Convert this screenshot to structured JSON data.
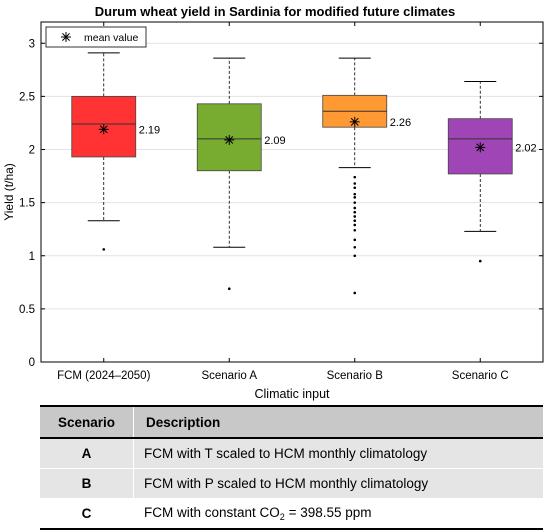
{
  "chart_data": {
    "type": "box",
    "title": "Durum wheat yield in Sardinia for modified future climates",
    "xlabel": "Climatic input",
    "ylabel": "Yield (t/ha)",
    "ylim": [
      0,
      3.2
    ],
    "yticks": [
      0,
      0.5,
      1,
      1.5,
      2,
      2.5,
      3
    ],
    "ytick_labels": [
      "0",
      "0.5",
      "1",
      "1.5",
      "2",
      "2.5",
      "3"
    ],
    "grid": true,
    "legend": {
      "label": "mean value",
      "placement": "top-left"
    },
    "categories": [
      "FCM (2024–2050)",
      "Scenario A",
      "Scenario B",
      "Scenario C"
    ],
    "boxes": [
      {
        "category": "FCM (2024–2050)",
        "color": "#ff3333",
        "whisker_low": 1.33,
        "q1": 1.93,
        "median": 2.24,
        "q3": 2.5,
        "whisker_high": 2.91,
        "mean": 2.19,
        "mean_label": "2.19",
        "outliers": [
          1.06
        ]
      },
      {
        "category": "Scenario A",
        "color": "#77ac30",
        "whisker_low": 1.08,
        "q1": 1.8,
        "median": 2.1,
        "q3": 2.43,
        "whisker_high": 2.86,
        "mean": 2.09,
        "mean_label": "2.09",
        "outliers": [
          0.69
        ]
      },
      {
        "category": "Scenario B",
        "color": "#ff9933",
        "whisker_low": 1.83,
        "q1": 2.21,
        "median": 2.36,
        "q3": 2.51,
        "whisker_high": 2.86,
        "mean": 2.26,
        "mean_label": "2.26",
        "outliers": [
          1.74,
          1.68,
          1.64,
          1.58,
          1.55,
          1.5,
          1.45,
          1.41,
          1.37,
          1.33,
          1.29,
          1.24,
          1.15,
          1.08,
          1.0,
          0.65
        ]
      },
      {
        "category": "Scenario C",
        "color": "#a045b5",
        "whisker_low": 1.23,
        "q1": 1.77,
        "median": 2.1,
        "q3": 2.29,
        "whisker_high": 2.64,
        "mean": 2.02,
        "mean_label": "2.02",
        "outliers": [
          0.95
        ]
      }
    ]
  },
  "table": {
    "headers": {
      "scenario": "Scenario",
      "description": "Description"
    },
    "rows": [
      {
        "scenario": "A",
        "description": "FCM with T scaled to HCM monthly climatology"
      },
      {
        "scenario": "B",
        "description": "FCM with P scaled to HCM monthly climatology"
      },
      {
        "scenario": "C",
        "description_prefix": "FCM with constant CO",
        "description_sub": "2",
        "description_suffix": " = 398.55 ppm"
      }
    ]
  }
}
